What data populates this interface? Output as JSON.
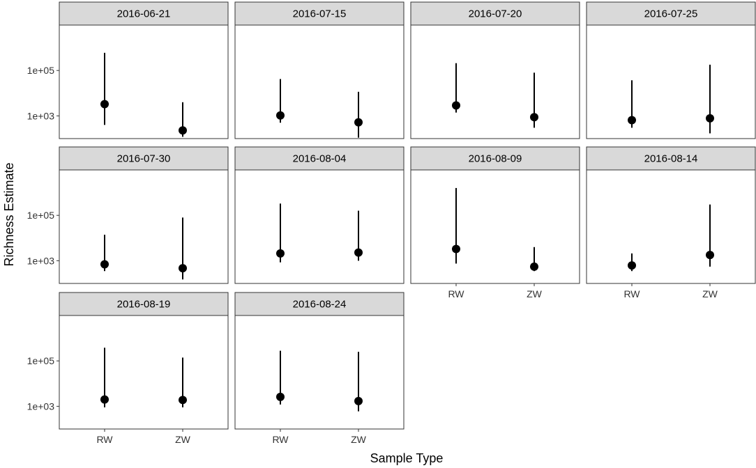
{
  "chart_data": {
    "type": "scatter",
    "subtype": "faceted-point-range",
    "xlabel": "Sample Type",
    "ylabel": "Richness Estimate",
    "y_scale": "log10",
    "ylim": [
      100,
      10000000
    ],
    "y_ticks": [
      {
        "value": 1000,
        "label": "1e+03"
      },
      {
        "value": 100000,
        "label": "1e+05"
      }
    ],
    "categories": [
      "RW",
      "ZW"
    ],
    "grid": false,
    "facet_columns": 4,
    "facets": [
      {
        "label": "2016-06-21",
        "points": [
          {
            "category": "RW",
            "estimate": 3300,
            "lower": 400,
            "upper": 600000
          },
          {
            "category": "ZW",
            "estimate": 230,
            "lower": 120,
            "upper": 4000
          }
        ]
      },
      {
        "label": "2016-07-15",
        "points": [
          {
            "category": "RW",
            "estimate": 1050,
            "lower": 500,
            "upper": 42000
          },
          {
            "category": "ZW",
            "estimate": 520,
            "lower": 110,
            "upper": 11500
          }
        ]
      },
      {
        "label": "2016-07-20",
        "points": [
          {
            "category": "RW",
            "estimate": 2900,
            "lower": 1400,
            "upper": 210000
          },
          {
            "category": "ZW",
            "estimate": 880,
            "lower": 300,
            "upper": 80000
          }
        ]
      },
      {
        "label": "2016-07-25",
        "points": [
          {
            "category": "RW",
            "estimate": 650,
            "lower": 300,
            "upper": 37000
          },
          {
            "category": "ZW",
            "estimate": 780,
            "lower": 170,
            "upper": 180000
          }
        ]
      },
      {
        "label": "2016-07-30",
        "points": [
          {
            "category": "RW",
            "estimate": 700,
            "lower": 350,
            "upper": 14000
          },
          {
            "category": "ZW",
            "estimate": 470,
            "lower": 150,
            "upper": 80000
          }
        ]
      },
      {
        "label": "2016-08-04",
        "points": [
          {
            "category": "RW",
            "estimate": 2100,
            "lower": 850,
            "upper": 330000
          },
          {
            "category": "ZW",
            "estimate": 2300,
            "lower": 1000,
            "upper": 160000
          }
        ]
      },
      {
        "label": "2016-08-09",
        "points": [
          {
            "category": "RW",
            "estimate": 3300,
            "lower": 750,
            "upper": 1600000
          },
          {
            "category": "ZW",
            "estimate": 550,
            "lower": 350,
            "upper": 4000
          }
        ]
      },
      {
        "label": "2016-08-14",
        "points": [
          {
            "category": "RW",
            "estimate": 620,
            "lower": 350,
            "upper": 2100
          },
          {
            "category": "ZW",
            "estimate": 1800,
            "lower": 550,
            "upper": 300000
          }
        ]
      },
      {
        "label": "2016-08-19",
        "points": [
          {
            "category": "RW",
            "estimate": 2000,
            "lower": 900,
            "upper": 380000
          },
          {
            "category": "ZW",
            "estimate": 1900,
            "lower": 900,
            "upper": 140000
          }
        ]
      },
      {
        "label": "2016-08-24",
        "points": [
          {
            "category": "RW",
            "estimate": 2600,
            "lower": 1200,
            "upper": 280000
          },
          {
            "category": "ZW",
            "estimate": 1700,
            "lower": 600,
            "upper": 250000
          }
        ]
      }
    ]
  }
}
